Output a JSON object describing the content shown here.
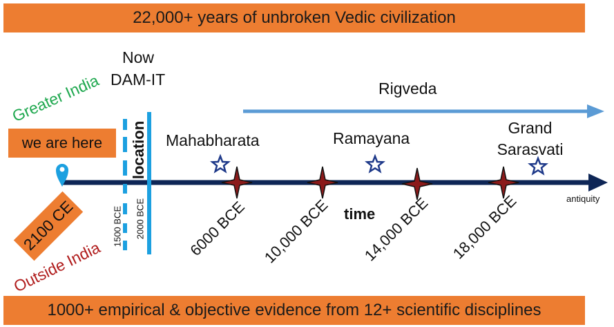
{
  "top_banner": "22,000+ years of unbroken Vedic civilization",
  "bottom_banner": "1000+ empirical & objective evidence from 12+ scientific disciplines",
  "now_label": "Now",
  "dam_it_label": "DAM-IT",
  "greater_india": "Greater India",
  "outside_india": "Outside India",
  "we_are_here": "we are here",
  "current_year": "2100 CE",
  "location_label": "location",
  "date_1500": "1500 BCE",
  "date_2000": "2000 BCE",
  "rigveda": "Rigveda",
  "time_label": "time",
  "antiquity_label": "antiquity",
  "events": [
    {
      "label": "Mahabharata"
    },
    {
      "label": "Ramayana"
    },
    {
      "label": "Grand Sarasvati"
    }
  ],
  "era_ticks": [
    "6000 BCE",
    "10,000 BCE",
    "14,000 BCE",
    "18,000 BCE"
  ],
  "colors": {
    "banner": "#ed7d31",
    "timeline": "#0e2656",
    "rigveda_arrow": "#5b9bd5",
    "location_bar": "#1ca0e0",
    "greater_india": "#1fa84f",
    "outside_india": "#b01c1c",
    "star_outline": "#1f3a8a",
    "cross_star_fill": "#8b1a1a"
  }
}
